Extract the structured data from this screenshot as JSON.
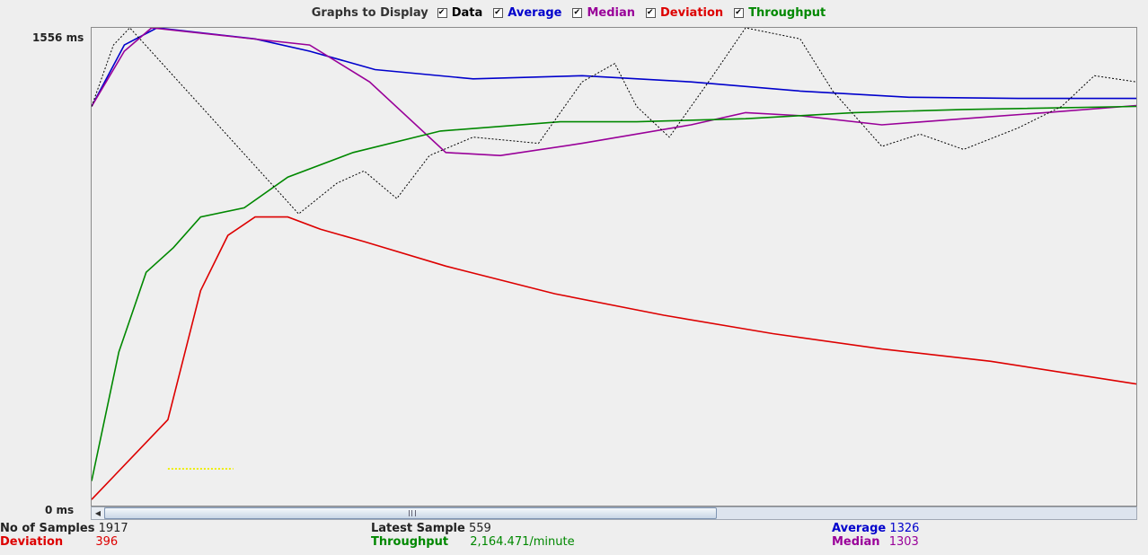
{
  "header": {
    "title": "Graphs to Display",
    "toggles": [
      {
        "label": "Data",
        "color": "#000000",
        "checked": true
      },
      {
        "label": "Average",
        "color": "#0000cc",
        "checked": true
      },
      {
        "label": "Median",
        "color": "#990099",
        "checked": true
      },
      {
        "label": "Deviation",
        "color": "#dd0000",
        "checked": true
      },
      {
        "label": "Throughput",
        "color": "#008800",
        "checked": true
      }
    ]
  },
  "chart_data": {
    "type": "line",
    "y_axis": {
      "max_label": "1556  ms",
      "min_label": "0  ms",
      "ylim": [
        0,
        1556
      ],
      "unit": "ms"
    },
    "x_range": [
      0,
      1917
    ],
    "grid": false,
    "series": [
      {
        "name": "Average",
        "color": "#0000cc",
        "points": [
          [
            0,
            1300
          ],
          [
            60,
            1500
          ],
          [
            120,
            1556
          ],
          [
            300,
            1520
          ],
          [
            400,
            1480
          ],
          [
            520,
            1420
          ],
          [
            700,
            1390
          ],
          [
            900,
            1400
          ],
          [
            1100,
            1380
          ],
          [
            1300,
            1350
          ],
          [
            1500,
            1330
          ],
          [
            1700,
            1326
          ],
          [
            1917,
            1326
          ]
        ]
      },
      {
        "name": "Median",
        "color": "#990099",
        "points": [
          [
            0,
            1300
          ],
          [
            60,
            1480
          ],
          [
            110,
            1556
          ],
          [
            400,
            1500
          ],
          [
            510,
            1380
          ],
          [
            650,
            1150
          ],
          [
            750,
            1140
          ],
          [
            900,
            1180
          ],
          [
            1100,
            1240
          ],
          [
            1200,
            1280
          ],
          [
            1300,
            1270
          ],
          [
            1450,
            1240
          ],
          [
            1600,
            1260
          ],
          [
            1750,
            1280
          ],
          [
            1917,
            1303
          ]
        ]
      },
      {
        "name": "Deviation",
        "color": "#dd0000",
        "points": [
          [
            0,
            20
          ],
          [
            140,
            280
          ],
          [
            200,
            700
          ],
          [
            250,
            880
          ],
          [
            300,
            940
          ],
          [
            360,
            940
          ],
          [
            420,
            900
          ],
          [
            500,
            860
          ],
          [
            650,
            780
          ],
          [
            850,
            690
          ],
          [
            1050,
            620
          ],
          [
            1250,
            560
          ],
          [
            1450,
            510
          ],
          [
            1650,
            470
          ],
          [
            1917,
            396
          ]
        ]
      },
      {
        "name": "Throughput",
        "color": "#008800",
        "points": [
          [
            0,
            80
          ],
          [
            50,
            500
          ],
          [
            100,
            760
          ],
          [
            150,
            840
          ],
          [
            200,
            940
          ],
          [
            280,
            970
          ],
          [
            360,
            1070
          ],
          [
            480,
            1150
          ],
          [
            640,
            1220
          ],
          [
            860,
            1250
          ],
          [
            1000,
            1250
          ],
          [
            1200,
            1260
          ],
          [
            1400,
            1280
          ],
          [
            1600,
            1290
          ],
          [
            1917,
            1300
          ]
        ]
      },
      {
        "name": "Data",
        "color": "#000000",
        "points": [
          [
            0,
            1300
          ],
          [
            40,
            1500
          ],
          [
            70,
            1556
          ],
          [
            380,
            950
          ],
          [
            450,
            1050
          ],
          [
            500,
            1090
          ],
          [
            560,
            1000
          ],
          [
            620,
            1140
          ],
          [
            700,
            1200
          ],
          [
            820,
            1180
          ],
          [
            900,
            1380
          ],
          [
            960,
            1440
          ],
          [
            1000,
            1300
          ],
          [
            1060,
            1200
          ],
          [
            1140,
            1400
          ],
          [
            1200,
            1556
          ],
          [
            1300,
            1520
          ],
          [
            1360,
            1350
          ],
          [
            1450,
            1170
          ],
          [
            1520,
            1210
          ],
          [
            1600,
            1160
          ],
          [
            1700,
            1230
          ],
          [
            1780,
            1300
          ],
          [
            1840,
            1400
          ],
          [
            1917,
            1380
          ]
        ]
      },
      {
        "name": "Latest",
        "color": "#eeee00",
        "points": [
          [
            140,
            120
          ],
          [
            260,
            120
          ]
        ]
      }
    ]
  },
  "stats": {
    "samples_label": "No of Samples",
    "samples_value": "1917",
    "latest_label": "Latest Sample",
    "latest_value": "559",
    "average_label": "Average",
    "average_value": "1326",
    "deviation_label": "Deviation",
    "deviation_value": "396",
    "throughput_label": "Throughput",
    "throughput_value": "2,164.471/minute",
    "median_label": "Median",
    "median_value": "1303"
  },
  "colors": {
    "average": "#0000cc",
    "median": "#990099",
    "deviation": "#dd0000",
    "throughput": "#008800"
  }
}
